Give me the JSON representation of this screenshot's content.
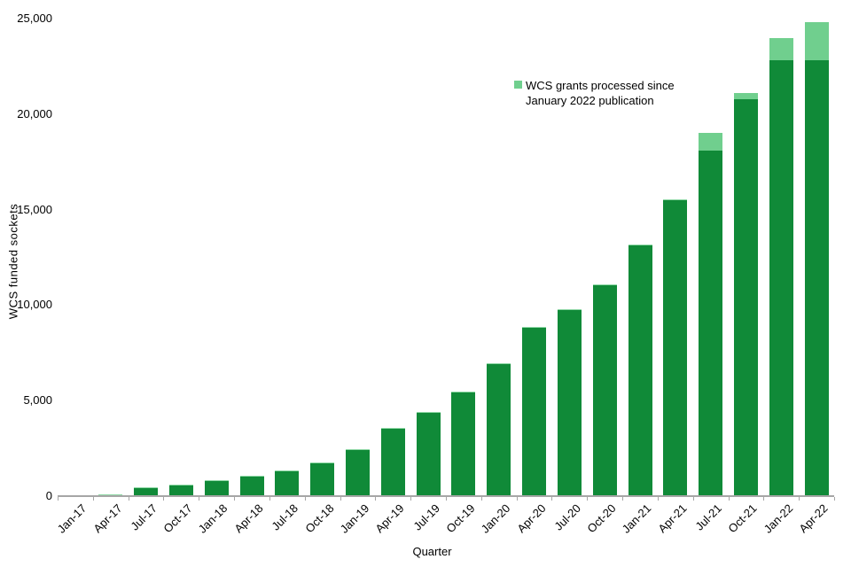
{
  "axes": {
    "x_title": "Quarter",
    "y_title": "WCS funded sockets"
  },
  "legend": {
    "label": "WCS grants processed since January 2022 publication"
  },
  "colors": {
    "dark_green": "#108a38",
    "light_green": "#70cf8e",
    "bar_top_edge": "#8fd8a6",
    "axis_grey": "#a6a6a6",
    "text": "#000000"
  },
  "chart_data": {
    "type": "bar",
    "stacked": true,
    "title": "",
    "xlabel": "Quarter",
    "ylabel": "WCS funded sockets",
    "ylim": [
      0,
      25000
    ],
    "ytick_interval": 5000,
    "ytick_labels": [
      "0",
      "5,000",
      "10,000",
      "15,000",
      "20,000",
      "25,000"
    ],
    "grid": false,
    "legend_position": "top-right-inside",
    "legend_entries_shown": [
      "WCS grants processed since January 2022 publication"
    ],
    "categories": [
      "Jan-17",
      "Apr-17",
      "Jul-17",
      "Oct-17",
      "Jan-18",
      "Apr-18",
      "Jul-18",
      "Oct-18",
      "Jan-19",
      "Apr-19",
      "Jul-19",
      "Oct-19",
      "Jan-20",
      "Apr-20",
      "Jul-20",
      "Oct-20",
      "Jan-21",
      "Apr-21",
      "Jul-21",
      "Oct-21",
      "Jan-22",
      "Apr-22"
    ],
    "series": [
      {
        "name": "WCS funded sockets",
        "values": [
          0,
          100,
          450,
          600,
          850,
          1050,
          1350,
          1750,
          2450,
          3550,
          4400,
          5450,
          6950,
          8850,
          9800,
          11100,
          13150,
          15550,
          18100,
          20800,
          22800,
          22800
        ]
      },
      {
        "name": "WCS grants processed since January 2022 publication",
        "values": [
          0,
          0,
          0,
          0,
          0,
          0,
          0,
          0,
          0,
          0,
          0,
          0,
          0,
          0,
          0,
          0,
          0,
          0,
          900,
          300,
          1200,
          2000
        ]
      }
    ]
  }
}
